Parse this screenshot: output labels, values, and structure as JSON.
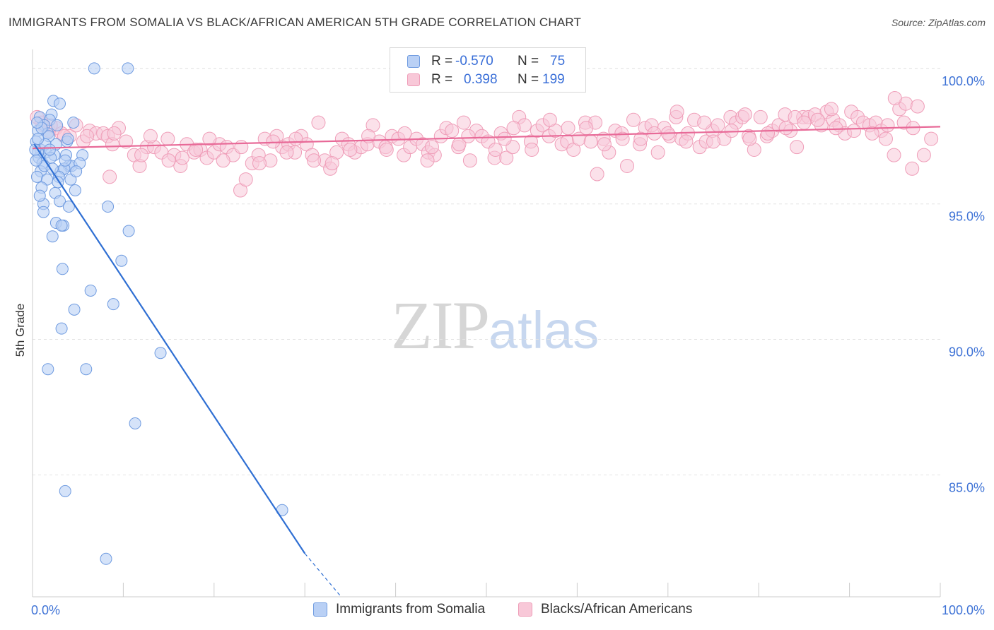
{
  "title": "IMMIGRANTS FROM SOMALIA VS BLACK/AFRICAN AMERICAN 5TH GRADE CORRELATION CHART",
  "source": "Source: ZipAtlas.com",
  "watermark": {
    "zip": "ZIP",
    "atlas": "atlas"
  },
  "legend": {
    "rows": [
      {
        "r_label": "R =",
        "r_value": "-0.570",
        "n_label": "N =",
        "n_value": "75"
      },
      {
        "r_label": "R =",
        "r_value": "0.398",
        "n_label": "N =",
        "n_value": "199"
      }
    ]
  },
  "bottom_legend": [
    "Immigrants from Somalia",
    "Blacks/African Americans"
  ],
  "colors": {
    "somalia_fill": "#b9d0f5",
    "somalia_stroke": "#6f9be0",
    "somalia_line": "#2f6fd3",
    "black_fill": "#f8c8d8",
    "black_stroke": "#ef9db8",
    "black_line": "#e86a98",
    "axis_text": "#3f73d6",
    "grid": "#e3e3e3"
  },
  "chart_data": {
    "type": "scatter",
    "title": "IMMIGRANTS FROM SOMALIA VS BLACK/AFRICAN AMERICAN 5TH GRADE CORRELATION CHART",
    "xlabel": "",
    "ylabel": "5th Grade",
    "xlim": [
      0,
      100
    ],
    "ylim": [
      80.5,
      100.7
    ],
    "x_tick_labels": [
      "0.0%",
      "100.0%"
    ],
    "y_ticks": [
      85,
      90,
      95,
      100
    ],
    "y_tick_labels": [
      "85.0%",
      "90.0%",
      "95.0%",
      "100.0%"
    ],
    "grid": true,
    "series": [
      {
        "name": "Immigrants from Somalia",
        "r": -0.57,
        "n": 75,
        "trend": {
          "x0": 0.2,
          "y0": 97.2,
          "x1": 30.0,
          "y1": 82.1,
          "dashed_to_x": 34.0,
          "dashed_to_y": 80.5
        },
        "points": [
          [
            6.8,
            100.0
          ],
          [
            10.5,
            100.0
          ],
          [
            2.3,
            98.8
          ],
          [
            3.0,
            98.7
          ],
          [
            2.1,
            98.3
          ],
          [
            0.8,
            98.2
          ],
          [
            1.9,
            98.1
          ],
          [
            4.5,
            98.0
          ],
          [
            1.3,
            97.9
          ],
          [
            0.6,
            97.7
          ],
          [
            1.7,
            97.6
          ],
          [
            3.8,
            97.3
          ],
          [
            2.6,
            97.2
          ],
          [
            0.4,
            97.3
          ],
          [
            0.9,
            97.0
          ],
          [
            1.5,
            96.9
          ],
          [
            2.4,
            96.8
          ],
          [
            0.7,
            96.7
          ],
          [
            3.7,
            96.8
          ],
          [
            5.5,
            96.8
          ],
          [
            1.1,
            96.5
          ],
          [
            4.0,
            96.4
          ],
          [
            4.3,
            96.4
          ],
          [
            5.2,
            96.5
          ],
          [
            0.9,
            96.2
          ],
          [
            3.1,
            96.2
          ],
          [
            3.5,
            96.3
          ],
          [
            0.5,
            96.0
          ],
          [
            1.6,
            95.9
          ],
          [
            4.2,
            95.9
          ],
          [
            1.0,
            95.6
          ],
          [
            2.5,
            95.4
          ],
          [
            4.7,
            95.5
          ],
          [
            1.2,
            95.0
          ],
          [
            3.0,
            95.1
          ],
          [
            4.0,
            94.9
          ],
          [
            8.3,
            94.9
          ],
          [
            1.2,
            94.7
          ],
          [
            2.6,
            94.3
          ],
          [
            3.4,
            94.2
          ],
          [
            3.2,
            94.2
          ],
          [
            10.6,
            94.0
          ],
          [
            2.2,
            93.8
          ],
          [
            9.8,
            92.9
          ],
          [
            3.3,
            92.6
          ],
          [
            6.4,
            91.8
          ],
          [
            8.9,
            91.3
          ],
          [
            4.6,
            91.1
          ],
          [
            3.2,
            90.4
          ],
          [
            14.1,
            89.5
          ],
          [
            1.7,
            88.9
          ],
          [
            5.9,
            88.9
          ],
          [
            11.3,
            86.9
          ],
          [
            3.6,
            84.4
          ],
          [
            27.5,
            83.7
          ],
          [
            8.1,
            81.9
          ],
          [
            0.6,
            96.9
          ],
          [
            1.8,
            97.5
          ],
          [
            2.9,
            96.0
          ],
          [
            0.3,
            97.0
          ],
          [
            1.4,
            97.2
          ],
          [
            3.9,
            97.4
          ],
          [
            2.0,
            96.7
          ],
          [
            0.8,
            95.3
          ],
          [
            1.3,
            96.4
          ],
          [
            2.7,
            97.9
          ],
          [
            0.4,
            96.6
          ],
          [
            3.6,
            96.6
          ],
          [
            1.9,
            97.0
          ],
          [
            0.6,
            97.4
          ],
          [
            2.2,
            96.3
          ],
          [
            4.8,
            96.2
          ],
          [
            1.0,
            97.8
          ],
          [
            0.5,
            98.0
          ],
          [
            2.8,
            95.8
          ]
        ]
      },
      {
        "name": "Blacks/African Americans",
        "r": 0.398,
        "n": 199,
        "trend": {
          "x0": 0.0,
          "y0": 97.05,
          "x1": 100.0,
          "y1": 97.85
        },
        "points": [
          [
            0.5,
            98.2
          ],
          [
            1.2,
            97.9
          ],
          [
            1.8,
            97.7
          ],
          [
            2.6,
            97.8
          ],
          [
            3.2,
            97.6
          ],
          [
            4.1,
            97.5
          ],
          [
            4.8,
            97.9
          ],
          [
            5.6,
            97.3
          ],
          [
            6.3,
            97.7
          ],
          [
            7.0,
            97.6
          ],
          [
            7.8,
            97.6
          ],
          [
            8.3,
            97.5
          ],
          [
            8.8,
            97.2
          ],
          [
            9.5,
            97.8
          ],
          [
            10.3,
            97.3
          ],
          [
            11.2,
            96.8
          ],
          [
            11.8,
            96.4
          ],
          [
            12.6,
            97.1
          ],
          [
            13.4,
            97.1
          ],
          [
            14.2,
            96.9
          ],
          [
            14.9,
            97.4
          ],
          [
            15.6,
            96.8
          ],
          [
            16.3,
            96.4
          ],
          [
            17.0,
            97.2
          ],
          [
            17.8,
            96.9
          ],
          [
            18.5,
            97.0
          ],
          [
            19.2,
            96.7
          ],
          [
            20.0,
            96.9
          ],
          [
            20.6,
            97.2
          ],
          [
            21.4,
            97.1
          ],
          [
            22.1,
            96.8
          ],
          [
            22.9,
            95.5
          ],
          [
            23.5,
            95.9
          ],
          [
            24.2,
            96.5
          ],
          [
            24.9,
            96.8
          ],
          [
            25.6,
            97.4
          ],
          [
            26.2,
            96.6
          ],
          [
            26.9,
            97.5
          ],
          [
            27.5,
            97.1
          ],
          [
            28.2,
            97.2
          ],
          [
            28.9,
            96.9
          ],
          [
            29.6,
            97.5
          ],
          [
            30.2,
            97.2
          ],
          [
            30.8,
            96.8
          ],
          [
            31.5,
            98.0
          ],
          [
            32.2,
            96.6
          ],
          [
            32.8,
            96.3
          ],
          [
            33.5,
            96.9
          ],
          [
            34.1,
            97.4
          ],
          [
            34.8,
            97.2
          ],
          [
            35.5,
            96.9
          ],
          [
            36.2,
            97.1
          ],
          [
            36.9,
            97.2
          ],
          [
            37.5,
            97.9
          ],
          [
            38.2,
            97.3
          ],
          [
            38.9,
            97.1
          ],
          [
            39.6,
            97.5
          ],
          [
            40.3,
            97.4
          ],
          [
            40.9,
            96.8
          ],
          [
            41.6,
            97.1
          ],
          [
            42.3,
            97.4
          ],
          [
            43.0,
            97.2
          ],
          [
            43.6,
            96.9
          ],
          [
            44.3,
            96.8
          ],
          [
            45.0,
            97.5
          ],
          [
            45.6,
            97.8
          ],
          [
            46.2,
            97.7
          ],
          [
            46.9,
            97.1
          ],
          [
            47.5,
            98.0
          ],
          [
            48.2,
            96.6
          ],
          [
            48.9,
            97.7
          ],
          [
            49.5,
            97.5
          ],
          [
            50.2,
            97.3
          ],
          [
            50.9,
            96.7
          ],
          [
            51.6,
            97.6
          ],
          [
            52.2,
            96.7
          ],
          [
            52.9,
            97.1
          ],
          [
            53.6,
            98.2
          ],
          [
            54.2,
            97.9
          ],
          [
            54.9,
            97.3
          ],
          [
            55.6,
            97.7
          ],
          [
            56.2,
            97.9
          ],
          [
            56.9,
            97.5
          ],
          [
            57.6,
            97.7
          ],
          [
            58.3,
            97.2
          ],
          [
            58.9,
            97.3
          ],
          [
            59.6,
            97.0
          ],
          [
            60.2,
            97.4
          ],
          [
            60.9,
            98.0
          ],
          [
            61.5,
            97.3
          ],
          [
            62.2,
            96.1
          ],
          [
            62.9,
            97.4
          ],
          [
            63.5,
            96.9
          ],
          [
            64.2,
            97.7
          ],
          [
            64.9,
            97.6
          ],
          [
            65.5,
            96.4
          ],
          [
            66.2,
            98.1
          ],
          [
            66.9,
            97.2
          ],
          [
            67.5,
            97.8
          ],
          [
            68.2,
            97.9
          ],
          [
            68.9,
            96.9
          ],
          [
            69.6,
            97.8
          ],
          [
            70.2,
            97.5
          ],
          [
            70.9,
            98.2
          ],
          [
            71.5,
            97.4
          ],
          [
            72.2,
            97.6
          ],
          [
            72.9,
            98.1
          ],
          [
            73.5,
            97.1
          ],
          [
            74.2,
            97.3
          ],
          [
            74.9,
            97.7
          ],
          [
            75.5,
            97.9
          ],
          [
            76.2,
            97.4
          ],
          [
            76.9,
            98.2
          ],
          [
            77.5,
            98.0
          ],
          [
            78.2,
            98.2
          ],
          [
            78.9,
            97.5
          ],
          [
            79.5,
            97.0
          ],
          [
            80.2,
            98.2
          ],
          [
            80.9,
            97.5
          ],
          [
            81.5,
            97.7
          ],
          [
            82.2,
            97.9
          ],
          [
            82.9,
            98.3
          ],
          [
            83.5,
            97.7
          ],
          [
            84.2,
            97.1
          ],
          [
            84.9,
            98.2
          ],
          [
            85.5,
            98.2
          ],
          [
            86.2,
            98.3
          ],
          [
            86.9,
            97.9
          ],
          [
            87.5,
            98.4
          ],
          [
            88.2,
            98.1
          ],
          [
            88.9,
            97.9
          ],
          [
            89.5,
            97.6
          ],
          [
            90.2,
            98.4
          ],
          [
            90.9,
            98.2
          ],
          [
            91.5,
            98.0
          ],
          [
            92.2,
            97.9
          ],
          [
            92.9,
            98.0
          ],
          [
            93.5,
            97.7
          ],
          [
            94.2,
            97.9
          ],
          [
            94.9,
            96.8
          ],
          [
            95.5,
            98.5
          ],
          [
            96.2,
            98.7
          ],
          [
            96.9,
            96.3
          ],
          [
            97.5,
            98.6
          ],
          [
            98.2,
            96.8
          ],
          [
            99.0,
            97.4
          ],
          [
            88.0,
            98.5
          ],
          [
            95.0,
            98.9
          ],
          [
            84.0,
            98.2
          ],
          [
            78.5,
            98.3
          ],
          [
            74.0,
            98.0
          ],
          [
            71.0,
            98.4
          ],
          [
            67.0,
            97.4
          ],
          [
            62.0,
            98.0
          ],
          [
            57.0,
            98.1
          ],
          [
            52.0,
            97.4
          ],
          [
            47.0,
            97.2
          ],
          [
            43.5,
            96.6
          ],
          [
            39.0,
            97.0
          ],
          [
            35.0,
            97.0
          ],
          [
            31.0,
            96.6
          ],
          [
            28.0,
            96.9
          ],
          [
            25.0,
            96.5
          ],
          [
            21.0,
            96.6
          ],
          [
            18.0,
            97.0
          ],
          [
            15.0,
            96.6
          ],
          [
            12.0,
            96.8
          ],
          [
            9.0,
            97.6
          ],
          [
            6.0,
            97.5
          ],
          [
            3.5,
            97.5
          ],
          [
            2.0,
            97.9
          ],
          [
            1.0,
            98.0
          ],
          [
            8.5,
            96.0
          ],
          [
            13.0,
            97.5
          ],
          [
            16.5,
            96.7
          ],
          [
            19.5,
            97.4
          ],
          [
            23.0,
            97.1
          ],
          [
            26.5,
            97.3
          ],
          [
            29.0,
            97.4
          ],
          [
            33.0,
            96.5
          ],
          [
            37.0,
            97.5
          ],
          [
            41.0,
            97.6
          ],
          [
            44.0,
            97.1
          ],
          [
            48.0,
            97.5
          ],
          [
            51.0,
            97.0
          ],
          [
            53.0,
            97.8
          ],
          [
            55.0,
            97.0
          ],
          [
            59.0,
            97.8
          ],
          [
            61.0,
            97.8
          ],
          [
            63.0,
            97.2
          ],
          [
            65.0,
            97.4
          ],
          [
            68.5,
            97.6
          ],
          [
            70.0,
            97.6
          ],
          [
            72.0,
            97.3
          ],
          [
            75.0,
            97.3
          ],
          [
            77.0,
            97.7
          ],
          [
            79.0,
            97.4
          ],
          [
            81.0,
            97.6
          ],
          [
            83.0,
            97.8
          ],
          [
            85.0,
            98.0
          ],
          [
            86.5,
            98.1
          ],
          [
            88.5,
            97.8
          ],
          [
            90.5,
            97.7
          ],
          [
            92.5,
            97.6
          ],
          [
            94.0,
            97.4
          ],
          [
            96.0,
            98.0
          ],
          [
            97.0,
            97.8
          ]
        ]
      }
    ]
  }
}
